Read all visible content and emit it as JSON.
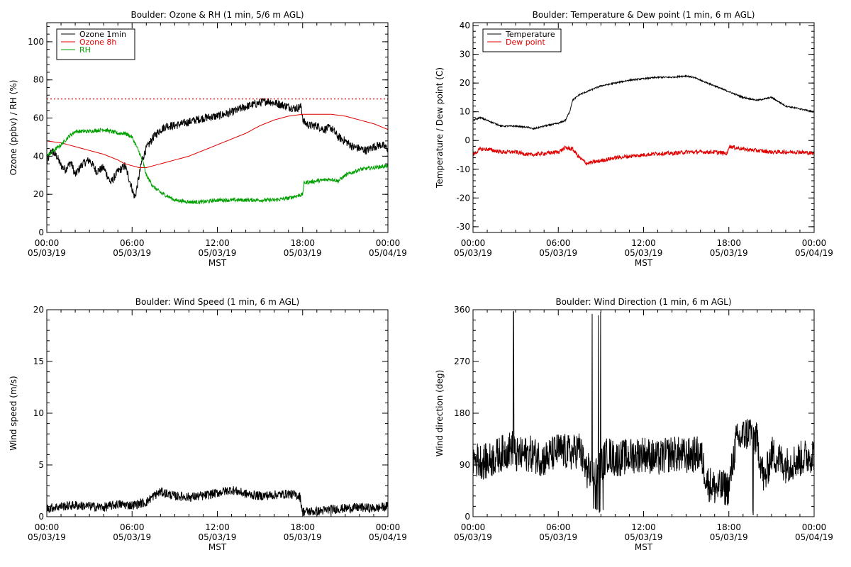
{
  "colors": {
    "black": "#000000",
    "red": "#e00000",
    "green": "#00a000"
  },
  "chart_data": [
    {
      "id": "ozone-rh",
      "type": "line",
      "title": "Boulder: Ozone & RH (1 min, 5/6 m AGL)",
      "xlabel": "MST",
      "ylabel": "Ozone (ppbv) / RH (%)",
      "xlim_hours": [
        0,
        24
      ],
      "ylim": [
        0,
        110
      ],
      "yticks": [
        0,
        20,
        40,
        60,
        80,
        100
      ],
      "xticks": [
        {
          "time": "00:00",
          "date": "05/03/19"
        },
        {
          "time": "06:00",
          "date": "05/03/19"
        },
        {
          "time": "12:00",
          "date": "05/03/19"
        },
        {
          "time": "18:00",
          "date": "05/03/19"
        },
        {
          "time": "00:00",
          "date": "05/04/19"
        }
      ],
      "legend_position": "top-left",
      "reference_line": {
        "y": 70,
        "color": "#e00000",
        "style": "dotted"
      },
      "series": [
        {
          "name": "Ozone 1min",
          "color": "#000000",
          "noise": 2.2,
          "x": [
            0,
            0.3,
            0.7,
            1,
            1.3,
            1.7,
            2,
            2.5,
            3,
            3.5,
            4,
            4.5,
            5,
            5.5,
            5.8,
            6.2,
            6.5,
            6.7,
            7,
            7.5,
            8,
            8.5,
            9,
            9.5,
            10,
            11,
            12,
            13,
            14,
            15,
            15.5,
            16,
            16.5,
            17,
            17.5,
            17.9,
            18.05,
            18.5,
            19,
            19.5,
            20,
            20.5,
            21,
            21.5,
            22,
            22.5,
            23,
            23.5,
            24
          ],
          "y": [
            36,
            43,
            40,
            35,
            33,
            37,
            30,
            36,
            38,
            32,
            34,
            26,
            32,
            35,
            28,
            18,
            30,
            38,
            44,
            50,
            54,
            56,
            56,
            57,
            58,
            60,
            61,
            63,
            66,
            68,
            69,
            68,
            67,
            66,
            65,
            66,
            58,
            56,
            56,
            54,
            55,
            50,
            48,
            45,
            44,
            43,
            45,
            46,
            44
          ]
        },
        {
          "name": "Ozone 8h",
          "color": "#e00000",
          "noise": 0,
          "x": [
            0,
            1,
            2,
            3,
            4,
            5,
            5.5,
            6,
            6.5,
            7,
            8,
            9,
            10,
            11,
            12,
            13,
            14,
            15,
            16,
            17,
            18,
            19,
            20,
            21,
            22,
            23,
            24
          ],
          "y": [
            48,
            47,
            45,
            43,
            41,
            38,
            36,
            35,
            34,
            34,
            36,
            38,
            40,
            43,
            46,
            49,
            52,
            56,
            59,
            61,
            62,
            62,
            62,
            61,
            59,
            57,
            54
          ]
        },
        {
          "name": "RH",
          "color": "#00a000",
          "noise": 1.0,
          "x": [
            0,
            0.5,
            1,
            1.5,
            2,
            3,
            4,
            5,
            5.5,
            6,
            6.5,
            6.8,
            7,
            7.5,
            8,
            8.5,
            9,
            10,
            11,
            12,
            13,
            14,
            15,
            16,
            17,
            18,
            18.1,
            19,
            20,
            20.5,
            21,
            22,
            23,
            24
          ],
          "y": [
            40,
            43,
            46,
            50,
            53,
            53,
            54,
            52,
            52,
            50,
            42,
            36,
            30,
            24,
            21,
            19,
            17,
            16,
            16,
            17,
            17,
            17,
            17,
            17,
            18,
            20,
            26,
            27,
            28,
            27,
            30,
            33,
            34,
            35
          ]
        }
      ]
    },
    {
      "id": "temp-dew",
      "type": "line",
      "title": "Boulder: Temperature & Dew point (1 min, 6 m AGL)",
      "xlabel": "MST",
      "ylabel": "Temperature / Dew point (C)",
      "xlim_hours": [
        0,
        24
      ],
      "ylim": [
        -32,
        41
      ],
      "yticks": [
        -30,
        -20,
        -10,
        0,
        10,
        20,
        30,
        40
      ],
      "xticks": [
        {
          "time": "00:00",
          "date": "05/03/19"
        },
        {
          "time": "06:00",
          "date": "05/03/19"
        },
        {
          "time": "12:00",
          "date": "05/03/19"
        },
        {
          "time": "18:00",
          "date": "05/03/19"
        },
        {
          "time": "00:00",
          "date": "05/04/19"
        }
      ],
      "legend_position": "top-left",
      "series": [
        {
          "name": "Temperature",
          "color": "#000000",
          "noise": 0.25,
          "x": [
            0,
            0.5,
            1,
            1.5,
            2,
            3,
            4,
            4.2,
            5,
            5.5,
            6,
            6.5,
            6.8,
            7,
            7.5,
            8,
            9,
            10,
            11,
            12,
            13,
            14,
            15,
            15.5,
            16,
            16.5,
            17,
            18,
            19,
            20,
            21,
            22,
            23,
            24
          ],
          "y": [
            7,
            8,
            7,
            6,
            5,
            5,
            4.5,
            4,
            5,
            5.5,
            6,
            7,
            10,
            14,
            16,
            17,
            19,
            20,
            21,
            21.5,
            22,
            22,
            22.5,
            22,
            21,
            20,
            19,
            17,
            15,
            14,
            15,
            12,
            11,
            10
          ]
        },
        {
          "name": "Dew point",
          "color": "#e00000",
          "noise": 0.7,
          "x": [
            0,
            0.5,
            1,
            2,
            3,
            4,
            5,
            6,
            6.5,
            7,
            7.5,
            8,
            9,
            10,
            11,
            12,
            13,
            14,
            15,
            16,
            17,
            17.9,
            18,
            19,
            20,
            21,
            22,
            23,
            24
          ],
          "y": [
            -5,
            -3,
            -3,
            -4,
            -4,
            -5,
            -4.5,
            -4,
            -2.5,
            -3,
            -6,
            -8,
            -7,
            -6,
            -5.5,
            -5,
            -4.5,
            -4.5,
            -4,
            -4,
            -4,
            -4.5,
            -2,
            -3,
            -3.5,
            -4,
            -4,
            -4,
            -4.5
          ]
        }
      ]
    },
    {
      "id": "wind-speed",
      "type": "line",
      "title": "Boulder: Wind Speed (1 min, 6 m AGL)",
      "xlabel": "MST",
      "ylabel": "Wind speed (m/s)",
      "xlim_hours": [
        0,
        24
      ],
      "ylim": [
        0,
        20
      ],
      "yticks": [
        0,
        5,
        10,
        15,
        20
      ],
      "xticks": [
        {
          "time": "00:00",
          "date": "05/03/19"
        },
        {
          "time": "06:00",
          "date": "05/03/19"
        },
        {
          "time": "12:00",
          "date": "05/03/19"
        },
        {
          "time": "18:00",
          "date": "05/03/19"
        },
        {
          "time": "00:00",
          "date": "05/04/19"
        }
      ],
      "series": [
        {
          "name": "",
          "color": "#000000",
          "noise": 0.45,
          "x": [
            0,
            1,
            2,
            3,
            4,
            5,
            6,
            7,
            7.5,
            8,
            9,
            10,
            11,
            12,
            13,
            14,
            15,
            16,
            17,
            17.8,
            18,
            19,
            20,
            21,
            22,
            23,
            24
          ],
          "y": [
            0.8,
            1.0,
            1.1,
            1.0,
            0.9,
            1.2,
            1.1,
            1.4,
            2.0,
            2.4,
            2.0,
            1.9,
            2.0,
            2.3,
            2.6,
            2.2,
            2.0,
            2.1,
            2.2,
            2.0,
            0.5,
            0.5,
            0.7,
            0.8,
            0.9,
            0.8,
            1.0
          ]
        }
      ]
    },
    {
      "id": "wind-direction",
      "type": "line",
      "title": "Boulder: Wind Direction (1 min, 6 m AGL)",
      "xlabel": "MST",
      "ylabel": "Wind direction (deg)",
      "xlim_hours": [
        0,
        24
      ],
      "ylim": [
        0,
        360
      ],
      "yticks": [
        0,
        90,
        180,
        270,
        360
      ],
      "xticks": [
        {
          "time": "00:00",
          "date": "05/03/19"
        },
        {
          "time": "06:00",
          "date": "05/03/19"
        },
        {
          "time": "12:00",
          "date": "05/03/19"
        },
        {
          "time": "18:00",
          "date": "05/03/19"
        },
        {
          "time": "00:00",
          "date": "05/04/19"
        }
      ],
      "series": [
        {
          "name": "",
          "color": "#000000",
          "noise": 32,
          "x": [
            0,
            1,
            2,
            2.8,
            3,
            4,
            5,
            6,
            7,
            7.5,
            7.8,
            8,
            8.5,
            9,
            9.5,
            10,
            11,
            12,
            13,
            14,
            15,
            16,
            16.5,
            17,
            18,
            18.5,
            19,
            19.5,
            20,
            20.5,
            21,
            22,
            23,
            24
          ],
          "y": [
            100,
            95,
            110,
            120,
            105,
            110,
            100,
            115,
            110,
            120,
            90,
            80,
            80,
            90,
            110,
            100,
            105,
            110,
            100,
            110,
            105,
            110,
            60,
            50,
            50,
            130,
            140,
            150,
            130,
            60,
            110,
            90,
            100,
            110
          ]
        }
      ]
    }
  ]
}
